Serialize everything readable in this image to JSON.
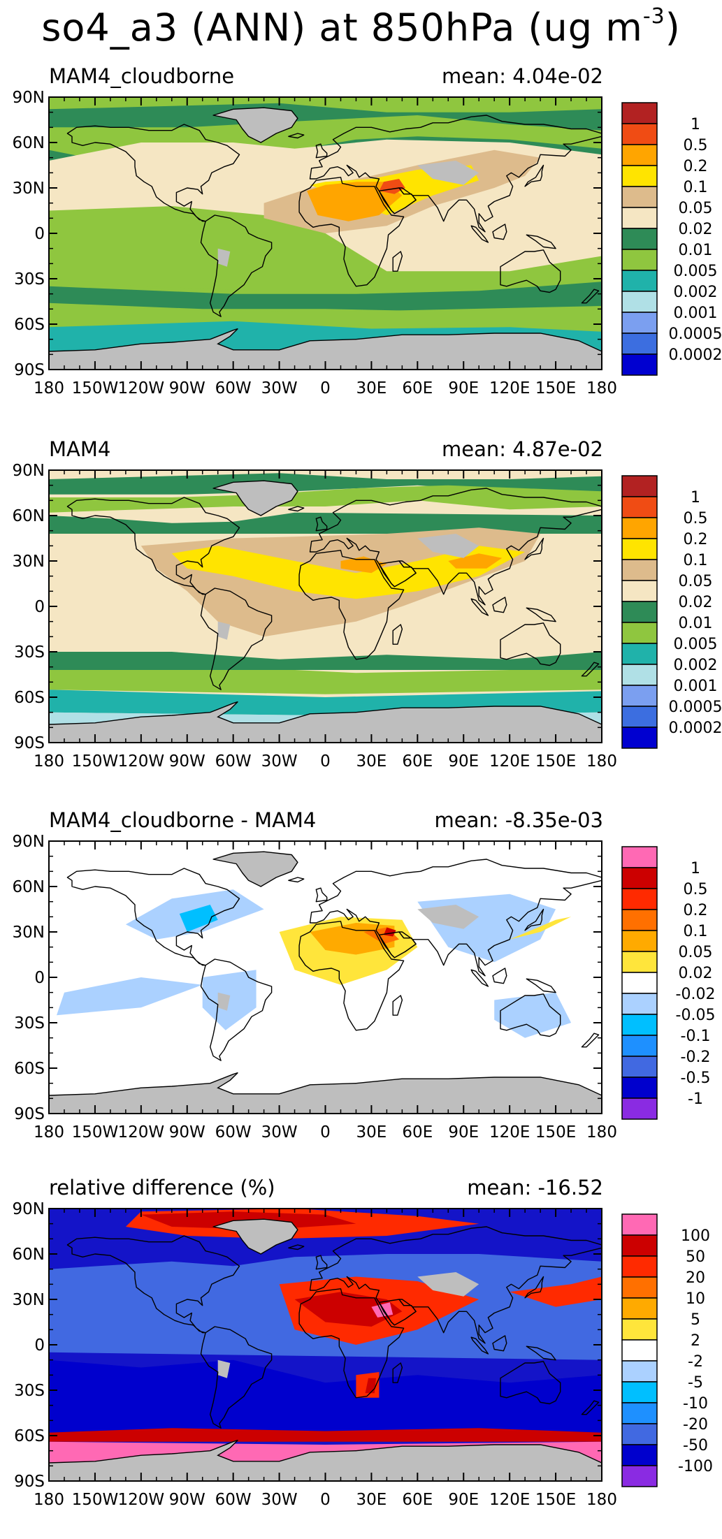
{
  "title": "so4_a3 (ANN) at 850hPa (ug m",
  "title_sup": "-3",
  "axes": {
    "lat_labels": [
      "90N",
      "60N",
      "30N",
      "0",
      "30S",
      "60S",
      "90S"
    ],
    "lon_labels": [
      "180",
      "150W",
      "120W",
      "90W",
      "60W",
      "30W",
      "0",
      "30E",
      "60E",
      "90E",
      "120E",
      "150E",
      "180"
    ]
  },
  "colors": {
    "missing": "#bebebe",
    "land_outline": "#000000"
  },
  "panels": [
    {
      "name": "MAM4_cloudborne",
      "mean": "mean: 4.04e-02",
      "background": "#8fc63f",
      "levels": [
        "1",
        "0.5",
        "0.2",
        "0.1",
        "0.05",
        "0.02",
        "0.01",
        "0.005",
        "0.002",
        "0.001",
        "0.0005",
        "0.0002"
      ],
      "colors": [
        "#b22222",
        "#f04c14",
        "#ffa500",
        "#ffe400",
        "#ddbb8c",
        "#f5e6c3",
        "#2e8b57",
        "#8fc63f",
        "#20b2aa",
        "#b0e0e6",
        "#7b9ff0",
        "#3c6ee0",
        "#0000d0"
      ]
    },
    {
      "name": "MAM4",
      "mean": "mean: 4.87e-02",
      "background": "#f5e6c3",
      "levels": [
        "1",
        "0.5",
        "0.2",
        "0.1",
        "0.05",
        "0.02",
        "0.01",
        "0.005",
        "0.002",
        "0.001",
        "0.0005",
        "0.0002"
      ],
      "colors": [
        "#b22222",
        "#f04c14",
        "#ffa500",
        "#ffe400",
        "#ddbb8c",
        "#f5e6c3",
        "#2e8b57",
        "#8fc63f",
        "#20b2aa",
        "#b0e0e6",
        "#7b9ff0",
        "#3c6ee0",
        "#0000d0"
      ]
    },
    {
      "name": "MAM4_cloudborne - MAM4",
      "mean": "mean: -8.35e-03",
      "background": "#ffffff",
      "levels": [
        "1",
        "0.5",
        "0.2",
        "0.1",
        "0.05",
        "0.02",
        "-0.02",
        "-0.05",
        "-0.1",
        "-0.2",
        "-0.5",
        "-1"
      ],
      "colors": [
        "#ff69b4",
        "#cc0000",
        "#ff2a00",
        "#ff7000",
        "#ffaa00",
        "#ffe53b",
        "#ffffff",
        "#abd1ff",
        "#00bfff",
        "#1e90ff",
        "#4169e1",
        "#0000cd",
        "#8a2be2"
      ]
    },
    {
      "name": "relative difference (%)",
      "mean": "mean: -16.52",
      "background": "#1414c8",
      "levels": [
        "100",
        "50",
        "20",
        "10",
        "5",
        "2",
        "-2",
        "-5",
        "-10",
        "-20",
        "-50",
        "-100"
      ],
      "colors": [
        "#ff69b4",
        "#cc0000",
        "#ff2a00",
        "#ff7000",
        "#ffaa00",
        "#ffe53b",
        "#ffffff",
        "#abd1ff",
        "#00bfff",
        "#1e90ff",
        "#4169e1",
        "#0000cd",
        "#8a2be2"
      ]
    }
  ]
}
